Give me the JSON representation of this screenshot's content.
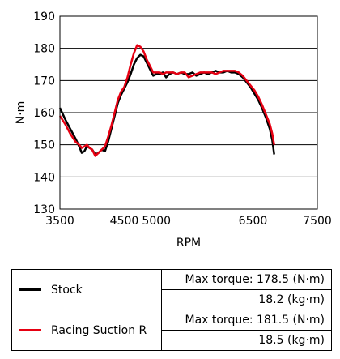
{
  "chart_data": {
    "type": "line",
    "xlabel": "RPM",
    "ylabel": "N·m",
    "xlim": [
      3500,
      7500
    ],
    "ylim": [
      130,
      190
    ],
    "x_ticks": [
      3500,
      4500,
      5000,
      6500,
      7500
    ],
    "x_tick_labels": [
      "3500",
      "4500",
      "5000",
      "6500",
      "7500"
    ],
    "y_ticks": [
      130,
      140,
      150,
      160,
      170,
      180,
      190
    ],
    "y_tick_labels": [
      "130",
      "140",
      "150",
      "160",
      "170",
      "180",
      "190"
    ],
    "grid": "horizontal",
    "series": [
      {
        "name": "Stock",
        "color": "#000000",
        "points": [
          [
            3500,
            161.5
          ],
          [
            3580,
            158
          ],
          [
            3660,
            155
          ],
          [
            3740,
            152
          ],
          [
            3800,
            149.5
          ],
          [
            3840,
            147.5
          ],
          [
            3880,
            148
          ],
          [
            3920,
            149.5
          ],
          [
            3960,
            149
          ],
          [
            4000,
            148.5
          ],
          [
            4050,
            147
          ],
          [
            4100,
            147.5
          ],
          [
            4150,
            148.5
          ],
          [
            4200,
            148
          ],
          [
            4250,
            151
          ],
          [
            4300,
            155
          ],
          [
            4350,
            159
          ],
          [
            4400,
            163
          ],
          [
            4450,
            165.5
          ],
          [
            4500,
            167.5
          ],
          [
            4550,
            169.5
          ],
          [
            4600,
            172
          ],
          [
            4650,
            175
          ],
          [
            4700,
            177
          ],
          [
            4750,
            178
          ],
          [
            4800,
            177.5
          ],
          [
            4850,
            175.5
          ],
          [
            4900,
            173.5
          ],
          [
            4950,
            171.5
          ],
          [
            5000,
            172
          ],
          [
            5050,
            172
          ],
          [
            5100,
            172.5
          ],
          [
            5150,
            171
          ],
          [
            5200,
            172
          ],
          [
            5260,
            172.5
          ],
          [
            5320,
            172
          ],
          [
            5380,
            172.5
          ],
          [
            5440,
            172
          ],
          [
            5500,
            172
          ],
          [
            5560,
            172.5
          ],
          [
            5620,
            171.5
          ],
          [
            5680,
            172
          ],
          [
            5740,
            172.5
          ],
          [
            5800,
            172
          ],
          [
            5860,
            172.5
          ],
          [
            5920,
            173
          ],
          [
            5980,
            172.5
          ],
          [
            6040,
            172.5
          ],
          [
            6100,
            173
          ],
          [
            6160,
            172.5
          ],
          [
            6220,
            172.5
          ],
          [
            6280,
            172
          ],
          [
            6340,
            171
          ],
          [
            6400,
            169.5
          ],
          [
            6460,
            168
          ],
          [
            6520,
            166
          ],
          [
            6580,
            164
          ],
          [
            6640,
            161.5
          ],
          [
            6700,
            158.5
          ],
          [
            6760,
            155
          ],
          [
            6800,
            151.5
          ],
          [
            6830,
            147
          ]
        ]
      },
      {
        "name": "Racing Suction R",
        "color": "#e60012",
        "points": [
          [
            3500,
            159
          ],
          [
            3580,
            156.5
          ],
          [
            3660,
            153.5
          ],
          [
            3740,
            151
          ],
          [
            3800,
            150
          ],
          [
            3840,
            149
          ],
          [
            3880,
            149.5
          ],
          [
            3920,
            150
          ],
          [
            3960,
            149
          ],
          [
            4000,
            148.5
          ],
          [
            4050,
            146.5
          ],
          [
            4100,
            147.5
          ],
          [
            4150,
            148.5
          ],
          [
            4200,
            149.5
          ],
          [
            4250,
            152.5
          ],
          [
            4300,
            156
          ],
          [
            4350,
            160
          ],
          [
            4400,
            164
          ],
          [
            4450,
            166.5
          ],
          [
            4500,
            168
          ],
          [
            4550,
            171
          ],
          [
            4600,
            175
          ],
          [
            4650,
            178.5
          ],
          [
            4700,
            181
          ],
          [
            4750,
            180.5
          ],
          [
            4800,
            179
          ],
          [
            4850,
            176.5
          ],
          [
            4900,
            174.5
          ],
          [
            4950,
            172.5
          ],
          [
            5000,
            172.5
          ],
          [
            5050,
            172.5
          ],
          [
            5100,
            172
          ],
          [
            5150,
            172.5
          ],
          [
            5200,
            172.5
          ],
          [
            5260,
            172.5
          ],
          [
            5320,
            172
          ],
          [
            5380,
            172.5
          ],
          [
            5440,
            172.5
          ],
          [
            5500,
            171
          ],
          [
            5560,
            171.5
          ],
          [
            5620,
            172
          ],
          [
            5680,
            172.5
          ],
          [
            5740,
            172.5
          ],
          [
            5800,
            172.5
          ],
          [
            5860,
            172.5
          ],
          [
            5920,
            172
          ],
          [
            5980,
            172.5
          ],
          [
            6040,
            173
          ],
          [
            6100,
            173
          ],
          [
            6160,
            173
          ],
          [
            6220,
            173
          ],
          [
            6280,
            172.5
          ],
          [
            6340,
            171.5
          ],
          [
            6400,
            170
          ],
          [
            6460,
            168.5
          ],
          [
            6520,
            167
          ],
          [
            6580,
            165
          ],
          [
            6640,
            162.5
          ],
          [
            6700,
            159.5
          ],
          [
            6760,
            156.5
          ],
          [
            6800,
            153.5
          ],
          [
            6830,
            150
          ]
        ]
      }
    ]
  },
  "legend_table": [
    {
      "series_name": "Stock",
      "line_color": "#000000",
      "max_torque_label": "Max torque: 178.5 (N·m)",
      "max_torque_kgm": "18.2 (kg·m)"
    },
    {
      "series_name": "Racing Suction R",
      "line_color": "#e60012",
      "max_torque_label": "Max torque: 181.5 (N·m)",
      "max_torque_kgm": "18.5 (kg·m)"
    }
  ]
}
